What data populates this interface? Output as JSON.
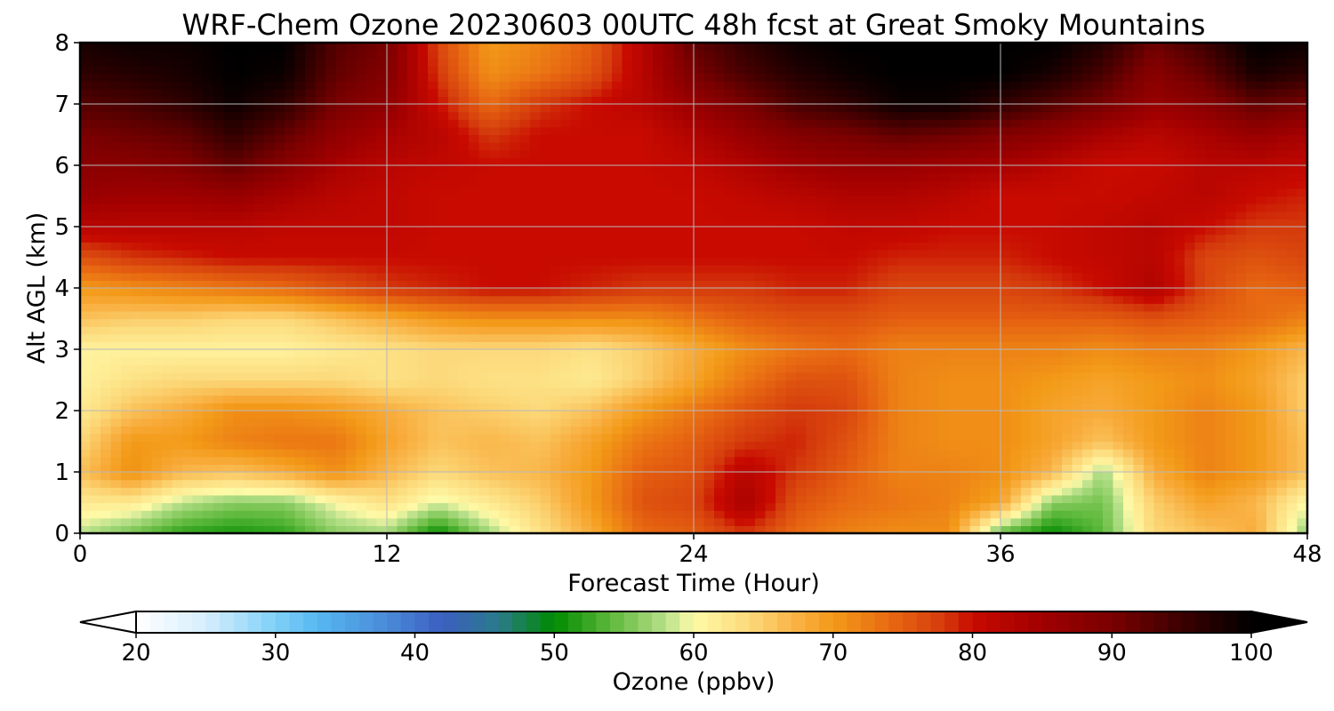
{
  "chart_data": {
    "type": "heatmap",
    "title": "WRF-Chem Ozone  20230603 00UTC 48h fcst at Great Smoky Mountains",
    "xlabel": "Forecast Time (Hour)",
    "ylabel": "Alt AGL (km)",
    "xlim": [
      0,
      48
    ],
    "ylim": [
      0,
      8
    ],
    "x_ticks": [
      0,
      12,
      24,
      36,
      48
    ],
    "y_ticks": [
      0,
      1,
      2,
      3,
      4,
      5,
      6,
      7,
      8
    ],
    "grid": true,
    "x": [
      0,
      2,
      4,
      6,
      8,
      10,
      12,
      14,
      16,
      18,
      20,
      22,
      24,
      26,
      28,
      30,
      32,
      34,
      36,
      38,
      40,
      42,
      44,
      46,
      48
    ],
    "y": [
      0,
      0.5,
      1,
      1.5,
      2,
      2.5,
      3,
      3.5,
      4,
      4.5,
      5,
      5.5,
      6,
      6.5,
      7,
      7.5,
      8
    ],
    "z_units": "ppbv",
    "z": [
      [
        58,
        55,
        52,
        51,
        52,
        56,
        57,
        50,
        57,
        63,
        68,
        74,
        75,
        78,
        74,
        72,
        71,
        71,
        54,
        50,
        54,
        64,
        66,
        68,
        56
      ],
      [
        62,
        62,
        58,
        56,
        56,
        60,
        63,
        59,
        62,
        65,
        70,
        76,
        77,
        84,
        76,
        74,
        73,
        72,
        69,
        56,
        55,
        65,
        69,
        67,
        60
      ],
      [
        66,
        71,
        67,
        66,
        68,
        71,
        67,
        64,
        66,
        67,
        70,
        75,
        76,
        82,
        78,
        75,
        72,
        72,
        71,
        67,
        57,
        68,
        72,
        70,
        66
      ],
      [
        64,
        70,
        70,
        72,
        73,
        73,
        69,
        66,
        67,
        66,
        69,
        73,
        75,
        78,
        79,
        76,
        72,
        71,
        71,
        69,
        66,
        70,
        72,
        70,
        66
      ],
      [
        62,
        66,
        68,
        71,
        71,
        70,
        68,
        66,
        65,
        64,
        66,
        70,
        73,
        76,
        78,
        77,
        72,
        71,
        71,
        69,
        68,
        70,
        72,
        70,
        65
      ],
      [
        61,
        63,
        64,
        64,
        64,
        64,
        63,
        64,
        63,
        63,
        62,
        65,
        69,
        73,
        76,
        76,
        72,
        71,
        71,
        70,
        69,
        70,
        71,
        69,
        65
      ],
      [
        61,
        61,
        61,
        61,
        61,
        62,
        63,
        64,
        64,
        64,
        63,
        65,
        68,
        71,
        73,
        74,
        72,
        72,
        72,
        72,
        71,
        72,
        72,
        70,
        67
      ],
      [
        66,
        65,
        65,
        64,
        64,
        66,
        68,
        70,
        71,
        71,
        71,
        71,
        73,
        75,
        76,
        76,
        75,
        75,
        75,
        75,
        75,
        76,
        75,
        74,
        72
      ],
      [
        70,
        71,
        72,
        73,
        74,
        76,
        78,
        79,
        80,
        80,
        79,
        78,
        78,
        78,
        79,
        79,
        77,
        77,
        77,
        78,
        80,
        83,
        77,
        74,
        75
      ],
      [
        76,
        78,
        79,
        80,
        80,
        80,
        80,
        80,
        80,
        80,
        80,
        80,
        80,
        80,
        80,
        80,
        79,
        79,
        79,
        80,
        81,
        82,
        77,
        76,
        77
      ],
      [
        82,
        82,
        82,
        82,
        81,
        81,
        81,
        80,
        80,
        80,
        80,
        80,
        80,
        80,
        80,
        81,
        81,
        80,
        80,
        80,
        81,
        82,
        80,
        78,
        78
      ],
      [
        86,
        85,
        85,
        86,
        84,
        82,
        81,
        80,
        80,
        80,
        80,
        80,
        80,
        81,
        82,
        83,
        83,
        82,
        80,
        80,
        80,
        81,
        82,
        80,
        79
      ],
      [
        88,
        88,
        89,
        92,
        88,
        84,
        82,
        81,
        80,
        80,
        80,
        80,
        81,
        83,
        85,
        86,
        86,
        85,
        84,
        82,
        80,
        80,
        82,
        82,
        81
      ],
      [
        90,
        91,
        92,
        96,
        92,
        87,
        84,
        82,
        78,
        80,
        80,
        80,
        83,
        86,
        89,
        90,
        92,
        91,
        89,
        87,
        84,
        82,
        84,
        86,
        84
      ],
      [
        93,
        94,
        96,
        99,
        96,
        90,
        87,
        80,
        74,
        78,
        80,
        82,
        86,
        90,
        94,
        96,
        99,
        99,
        96,
        93,
        90,
        86,
        88,
        92,
        90
      ],
      [
        96,
        97,
        98,
        100,
        99,
        92,
        89,
        78,
        71,
        73,
        76,
        82,
        90,
        94,
        97,
        99,
        100,
        100,
        100,
        98,
        94,
        88,
        92,
        98,
        96
      ],
      [
        98,
        99,
        99,
        100,
        100,
        93,
        90,
        77,
        70,
        72,
        75,
        82,
        92,
        96,
        99,
        100,
        100,
        100,
        100,
        100,
        97,
        91,
        95,
        100,
        99
      ]
    ],
    "colorbar": {
      "label": "Ozone  (ppbv)",
      "ticks": [
        20,
        30,
        40,
        50,
        60,
        70,
        80,
        90,
        100
      ],
      "min": 20,
      "max": 100,
      "extend": "both",
      "stops": [
        {
          "v": 20,
          "c": "#ffffff"
        },
        {
          "v": 25,
          "c": "#d6eefc"
        },
        {
          "v": 30,
          "c": "#7fd0f7"
        },
        {
          "v": 33,
          "c": "#56b8f0"
        },
        {
          "v": 38,
          "c": "#4a8ad8"
        },
        {
          "v": 42,
          "c": "#3b5fc0"
        },
        {
          "v": 46,
          "c": "#2a7a8a"
        },
        {
          "v": 50,
          "c": "#008a00"
        },
        {
          "v": 54,
          "c": "#5cb83a"
        },
        {
          "v": 58,
          "c": "#b8e08a"
        },
        {
          "v": 60,
          "c": "#fffaa8"
        },
        {
          "v": 64,
          "c": "#fcd97a"
        },
        {
          "v": 68,
          "c": "#f8ab3a"
        },
        {
          "v": 70,
          "c": "#f39a18"
        },
        {
          "v": 74,
          "c": "#e86a12"
        },
        {
          "v": 78,
          "c": "#d43a0c"
        },
        {
          "v": 80,
          "c": "#c80a00"
        },
        {
          "v": 85,
          "c": "#a00000"
        },
        {
          "v": 90,
          "c": "#7a0000"
        },
        {
          "v": 95,
          "c": "#3c0000"
        },
        {
          "v": 100,
          "c": "#000000"
        }
      ]
    }
  }
}
